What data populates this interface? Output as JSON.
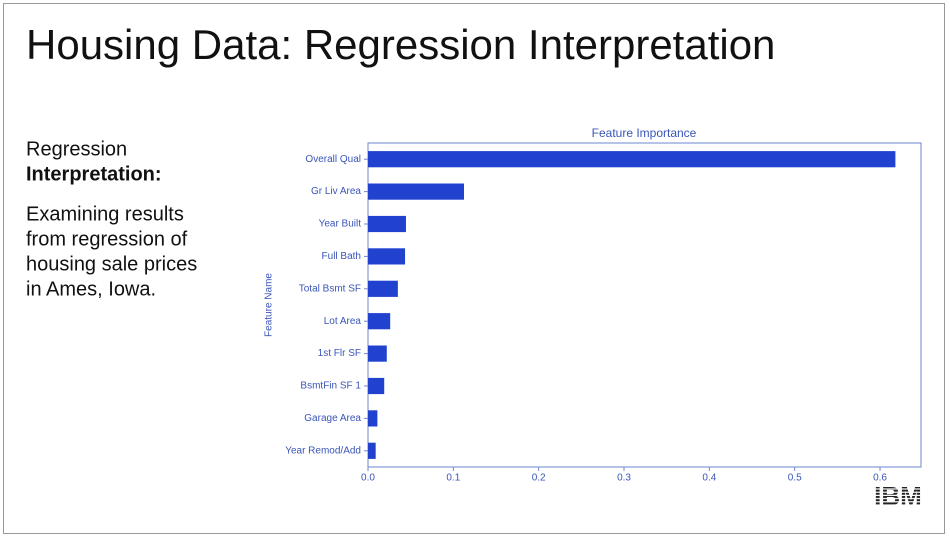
{
  "slide": {
    "title": "Housing Data: Regression Interpretation",
    "heading_regular": "Regression",
    "heading_bold": "Interpretation:",
    "body_lines": [
      "Examining results",
      "from regression of",
      "housing sale prices",
      "in Ames, Iowa."
    ],
    "logo": "IBM"
  },
  "chart_data": {
    "type": "barh",
    "title": "Feature Importance",
    "y_label": "Feature Name",
    "categories": [
      "Overall Qual",
      "Gr Liv Area",
      "Year Built",
      "Full Bath",
      "Total Bsmt SF",
      "Lot Area",
      "1st Flr SF",
      "BsmtFin SF 1",
      "Garage Area",
      "Year Remod/Add"
    ],
    "values": [
      0.618,
      0.1125,
      0.0445,
      0.0434,
      0.035,
      0.026,
      0.022,
      0.019,
      0.011,
      0.009
    ],
    "color": "#2141cf",
    "xlim": [
      0,
      0.648
    ],
    "xticks": [
      {
        "value": 0,
        "label": "0.0"
      },
      0.1,
      0.2,
      0.3,
      0.4,
      0.5,
      0.6
    ]
  }
}
